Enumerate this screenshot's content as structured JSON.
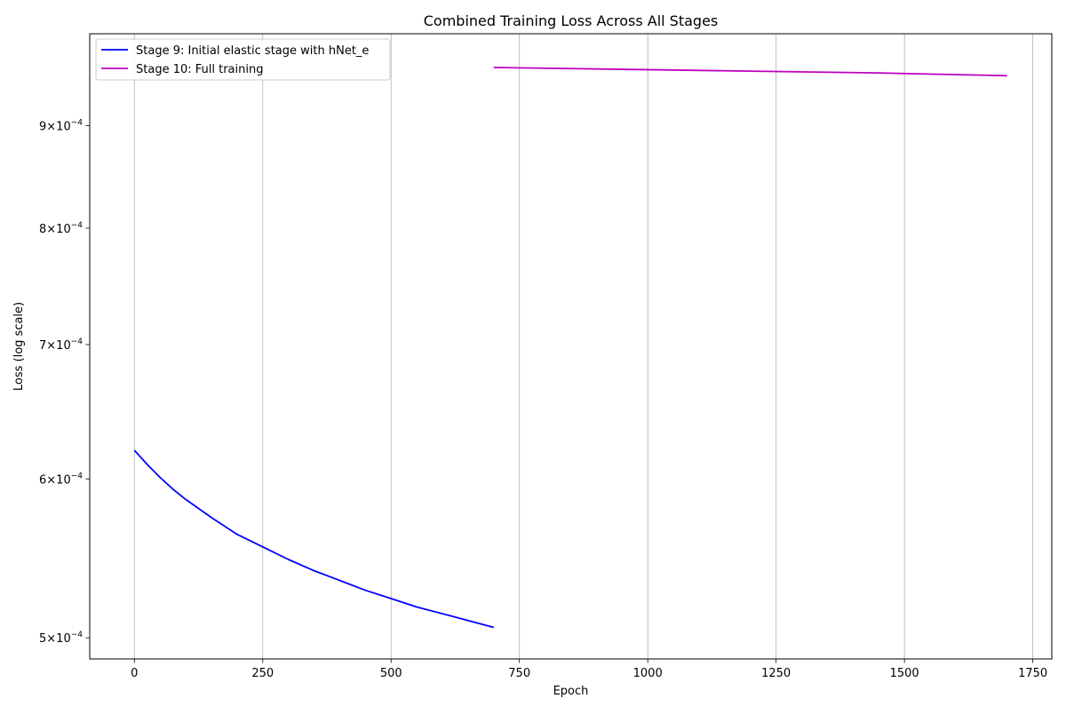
{
  "chart_data": {
    "type": "line",
    "title": "Combined Training Loss Across All Stages",
    "xlabel": "Epoch",
    "ylabel": "Loss (log scale)",
    "yscale": "log",
    "xlim": [
      -87,
      1787
    ],
    "ylim": [
      0.000488,
      0.001
    ],
    "grid": "vertical",
    "legend_position": "top-left",
    "x_ticks": [
      {
        "value": 0,
        "label": "0"
      },
      {
        "value": 250,
        "label": "250"
      },
      {
        "value": 500,
        "label": "500"
      },
      {
        "value": 750,
        "label": "750"
      },
      {
        "value": 1000,
        "label": "1000"
      },
      {
        "value": 1250,
        "label": "1250"
      },
      {
        "value": 1500,
        "label": "1500"
      },
      {
        "value": 1750,
        "label": "1750"
      }
    ],
    "y_ticks": [
      {
        "value": 0.0005,
        "mantissa": "5",
        "exponent": "−4"
      },
      {
        "value": 0.0006,
        "mantissa": "6",
        "exponent": "−4"
      },
      {
        "value": 0.0007,
        "mantissa": "7",
        "exponent": "−4"
      },
      {
        "value": 0.0008,
        "mantissa": "8",
        "exponent": "−4"
      },
      {
        "value": 0.0009,
        "mantissa": "9",
        "exponent": "−4"
      }
    ],
    "series": [
      {
        "name": "Stage 9: Initial elastic stage with hNet_e",
        "color": "#0000ff",
        "x": [
          0,
          25,
          50,
          75,
          100,
          150,
          200,
          250,
          300,
          350,
          400,
          450,
          500,
          550,
          600,
          650,
          700
        ],
        "y": [
          0.00062,
          0.00061,
          0.000601,
          0.000593,
          0.000586,
          0.000574,
          0.000563,
          0.000555,
          0.000547,
          0.00054,
          0.000534,
          0.000528,
          0.000523,
          0.000518,
          0.000514,
          0.00051,
          0.000506
        ]
      },
      {
        "name": "Stage 10: Full training",
        "color": "#bf00bf",
        "x": [
          700,
          950,
          1200,
          1450,
          1700
        ],
        "y": [
          0.000962,
          0.00096,
          0.000958,
          0.000956,
          0.000953
        ]
      }
    ]
  }
}
